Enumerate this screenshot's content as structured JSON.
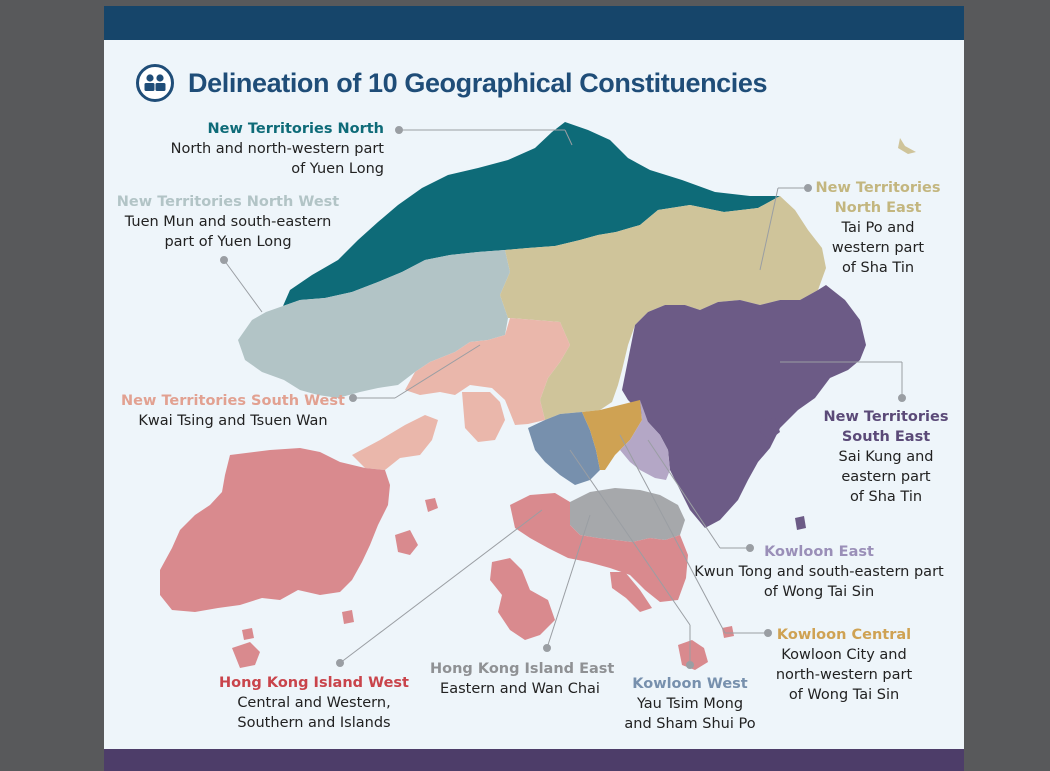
{
  "title": "Delineation of 10 Geographical Constituencies",
  "title_icon": "people-icon",
  "colors": {
    "top_band": "#16456a",
    "bottom_band": "#4d3d69",
    "title": "#1f4d78",
    "nt_north": "#0e6b78",
    "nt_north_west": "#b2c4c6",
    "nt_north_east": "#cfc49a",
    "nt_south_west": "#eab7ab",
    "nt_south_east": "#6c5b86",
    "kowloon_east": "#b4a7c6",
    "kowloon_central": "#cfa253",
    "kowloon_west": "#7790ad",
    "hk_island_east": "#a6a8ab",
    "hk_island_west": "#d98a8e"
  },
  "constituencies": {
    "nt_north": {
      "name": "New Territories North",
      "desc1": "North and north-western part",
      "desc2": "of Yuen Long"
    },
    "nt_north_west": {
      "name": "New Territories North West",
      "desc1": "Tuen Mun and south-eastern",
      "desc2": "part of Yuen Long"
    },
    "nt_north_east": {
      "name1": "New Territories",
      "name2": "North East",
      "desc1": "Tai Po and",
      "desc2": "western part",
      "desc3": "of Sha Tin"
    },
    "nt_south_west": {
      "name": "New Territories South West",
      "desc1": "Kwai Tsing and Tsuen Wan"
    },
    "nt_south_east": {
      "name1": "New Territories",
      "name2": "South East",
      "desc1": "Sai Kung and",
      "desc2": "eastern part",
      "desc3": "of Sha Tin"
    },
    "kowloon_east": {
      "name": "Kowloon East",
      "desc1": "Kwun Tong and south-eastern part",
      "desc2": "of Wong Tai Sin"
    },
    "kowloon_central": {
      "name": "Kowloon Central",
      "desc1": "Kowloon City and",
      "desc2": "north-western part",
      "desc3": "of Wong Tai Sin"
    },
    "kowloon_west": {
      "name": "Kowloon West",
      "desc1": "Yau Tsim Mong",
      "desc2": "and Sham Shui Po"
    },
    "hk_island_east": {
      "name": "Hong Kong Island East",
      "desc1": "Eastern and Wan Chai"
    },
    "hk_island_west": {
      "name": "Hong Kong Island West",
      "desc1": "Central and Western,",
      "desc2": "Southern and Islands"
    }
  }
}
